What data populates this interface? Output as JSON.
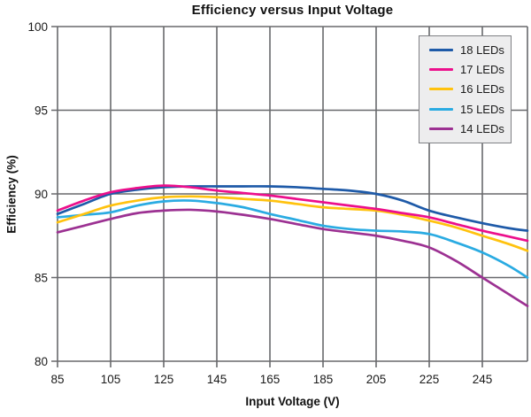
{
  "chart_data": {
    "type": "line",
    "title": "Efficiency versus Input Voltage",
    "xlabel": "Input Voltage (V)",
    "ylabel": "Efficiency (%)",
    "xlim": [
      85,
      262
    ],
    "ylim": [
      80,
      100
    ],
    "x_ticks": [
      85,
      105,
      125,
      145,
      165,
      185,
      205,
      225,
      245
    ],
    "y_ticks": [
      80,
      85,
      90,
      95,
      100
    ],
    "grid": true,
    "legend_position": "top-right",
    "x": [
      85,
      95,
      105,
      115,
      125,
      135,
      145,
      155,
      165,
      175,
      185,
      195,
      205,
      215,
      225,
      235,
      245,
      255,
      262
    ],
    "series": [
      {
        "name": "18 LEDs",
        "color": "#1e5aa8",
        "values": [
          88.8,
          89.4,
          90.0,
          90.25,
          90.4,
          90.45,
          90.45,
          90.45,
          90.45,
          90.4,
          90.3,
          90.2,
          90.0,
          89.6,
          89.0,
          88.6,
          88.25,
          87.95,
          87.8
        ]
      },
      {
        "name": "17 LEDs",
        "color": "#ec0f8c",
        "values": [
          89.0,
          89.6,
          90.1,
          90.35,
          90.5,
          90.4,
          90.2,
          90.05,
          89.9,
          89.7,
          89.5,
          89.3,
          89.1,
          88.85,
          88.6,
          88.2,
          87.8,
          87.45,
          87.2
        ]
      },
      {
        "name": "16 LEDs",
        "color": "#ffc20e",
        "values": [
          88.3,
          88.8,
          89.3,
          89.6,
          89.8,
          89.85,
          89.8,
          89.7,
          89.6,
          89.4,
          89.2,
          89.1,
          89.0,
          88.75,
          88.4,
          88.0,
          87.5,
          87.0,
          86.6
        ]
      },
      {
        "name": "15 LEDs",
        "color": "#2aabe2",
        "values": [
          88.6,
          88.75,
          88.9,
          89.3,
          89.55,
          89.6,
          89.45,
          89.2,
          88.8,
          88.45,
          88.1,
          87.9,
          87.8,
          87.75,
          87.6,
          87.1,
          86.5,
          85.7,
          85.0
        ]
      },
      {
        "name": "14 LEDs",
        "color": "#9c3192",
        "values": [
          87.7,
          88.1,
          88.5,
          88.85,
          89.0,
          89.05,
          88.95,
          88.75,
          88.5,
          88.2,
          87.9,
          87.7,
          87.5,
          87.2,
          86.8,
          86.0,
          85.0,
          84.0,
          83.3
        ]
      }
    ],
    "colors": {
      "grid": "#68696c",
      "frame": "#68696c",
      "text": "#1a1a1a",
      "legend_bg": "#ededee",
      "legend_border": "#7f8084"
    }
  }
}
